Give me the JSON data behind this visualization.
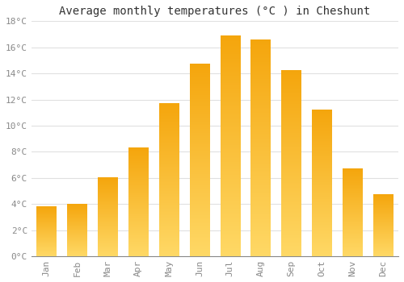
{
  "title": "Average monthly temperatures (°C ) in Cheshunt",
  "months": [
    "Jan",
    "Feb",
    "Mar",
    "Apr",
    "May",
    "Jun",
    "Jul",
    "Aug",
    "Sep",
    "Oct",
    "Nov",
    "Dec"
  ],
  "values": [
    3.8,
    4.0,
    6.0,
    8.3,
    11.7,
    14.7,
    16.9,
    16.6,
    14.2,
    11.2,
    6.7,
    4.7
  ],
  "bar_color_top": "#F5A800",
  "bar_color_bottom": "#FFD966",
  "ylim": [
    0,
    18
  ],
  "yticks": [
    0,
    2,
    4,
    6,
    8,
    10,
    12,
    14,
    16,
    18
  ],
  "ytick_labels": [
    "0°C",
    "2°C",
    "4°C",
    "6°C",
    "8°C",
    "10°C",
    "12°C",
    "14°C",
    "16°C",
    "18°C"
  ],
  "background_color": "#FFFFFF",
  "grid_color": "#E0E0E0",
  "title_fontsize": 10,
  "tick_fontsize": 8,
  "bar_width": 0.65,
  "figsize": [
    5.0,
    3.5
  ],
  "dpi": 100
}
